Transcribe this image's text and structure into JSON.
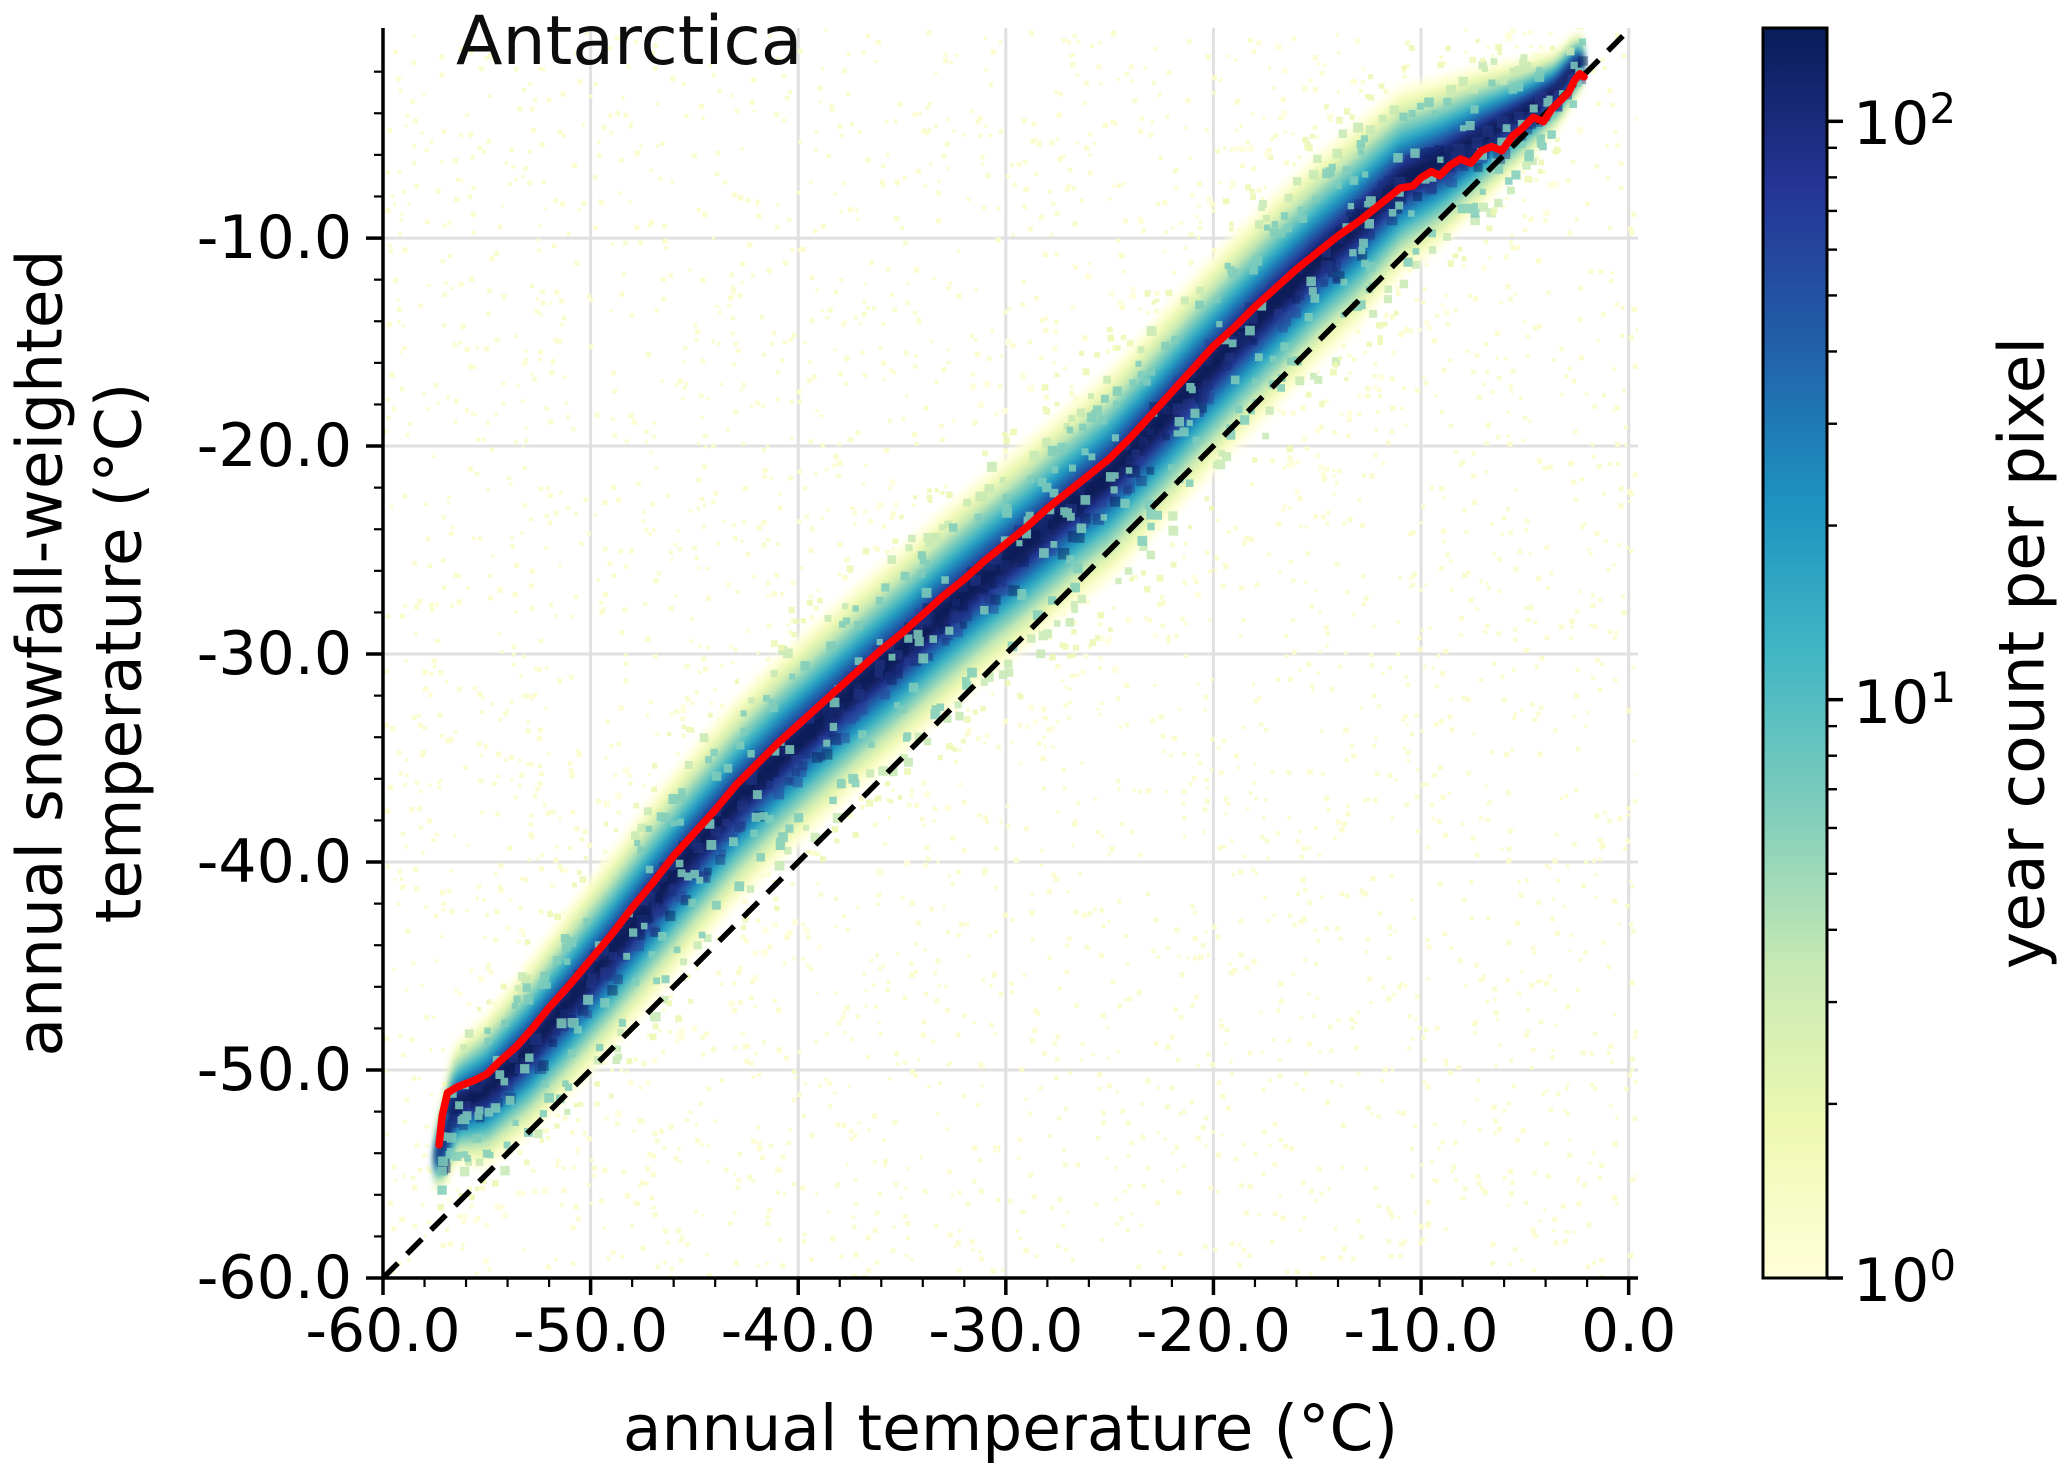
{
  "figure": {
    "background": "#ffffff"
  },
  "chart_data": {
    "type": "heatmap",
    "title": "Antarctica",
    "xlabel": "annual temperature (°C)",
    "ylabel_lines": [
      "annual snowfall-weighted",
      "temperature (°C)"
    ],
    "xlim": [
      -60,
      0.45
    ],
    "ylim": [
      -60,
      0.1
    ],
    "x_tick_values": [
      -60,
      -50,
      -40,
      -30,
      -20,
      -10,
      0
    ],
    "x_tick_labels": [
      "-60.0",
      "-50.0",
      "-40.0",
      "-30.0",
      "-20.0",
      "-10.0",
      "0.0"
    ],
    "y_tick_values": [
      -60,
      -50,
      -40,
      -30,
      -20,
      -10
    ],
    "y_tick_labels": [
      "-60.0",
      "-50.0",
      "-40.0",
      "-30.0",
      "-20.0",
      "-10.0"
    ],
    "minor_tick_step": 2,
    "grid": true,
    "grid_color": "#e0e0e0",
    "axis_color": "#000000",
    "identity_line": {
      "style": "dashed",
      "color": "#000000",
      "from": [
        -60,
        -60
      ],
      "to": [
        0,
        0
      ],
      "dash": [
        21,
        13
      ],
      "width": 5.5
    },
    "median_line": {
      "color": "#ff0000",
      "width": 7.5,
      "points": [
        [
          -57.3,
          -53.6
        ],
        [
          -57.15,
          -52.2
        ],
        [
          -56.9,
          -51.1
        ],
        [
          -56.4,
          -50.8
        ],
        [
          -55.6,
          -50.5
        ],
        [
          -55.0,
          -50.2
        ],
        [
          -54.4,
          -49.6
        ],
        [
          -53.6,
          -48.9
        ],
        [
          -52.8,
          -48.0
        ],
        [
          -52.0,
          -47.0
        ],
        [
          -51.0,
          -45.9
        ],
        [
          -50.0,
          -44.7
        ],
        [
          -49.0,
          -43.5
        ],
        [
          -48.0,
          -42.2
        ],
        [
          -47.0,
          -41.0
        ],
        [
          -46.0,
          -39.7
        ],
        [
          -45.0,
          -38.6
        ],
        [
          -44.0,
          -37.5
        ],
        [
          -43.0,
          -36.3
        ],
        [
          -42.0,
          -35.3
        ],
        [
          -41.0,
          -34.3
        ],
        [
          -40.0,
          -33.4
        ],
        [
          -39.0,
          -32.5
        ],
        [
          -38.0,
          -31.6
        ],
        [
          -37.0,
          -30.7
        ],
        [
          -36.0,
          -29.8
        ],
        [
          -35.0,
          -29.0
        ],
        [
          -34.0,
          -28.1
        ],
        [
          -33.0,
          -27.2
        ],
        [
          -32.0,
          -26.4
        ],
        [
          -31.0,
          -25.5
        ],
        [
          -30.0,
          -24.7
        ],
        [
          -29.0,
          -23.9
        ],
        [
          -28.0,
          -23.0
        ],
        [
          -27.0,
          -22.2
        ],
        [
          -26.0,
          -21.4
        ],
        [
          -25.0,
          -20.6
        ],
        [
          -24.0,
          -19.6
        ],
        [
          -23.0,
          -18.5
        ],
        [
          -22.0,
          -17.4
        ],
        [
          -21.0,
          -16.3
        ],
        [
          -20.0,
          -15.2
        ],
        [
          -19.0,
          -14.3
        ],
        [
          -18.0,
          -13.3
        ],
        [
          -17.0,
          -12.4
        ],
        [
          -16.0,
          -11.5
        ],
        [
          -15.0,
          -10.7
        ],
        [
          -14.0,
          -9.9
        ],
        [
          -13.0,
          -9.2
        ],
        [
          -12.0,
          -8.4
        ],
        [
          -11.0,
          -7.6
        ],
        [
          -10.4,
          -7.5
        ],
        [
          -10.0,
          -7.1
        ],
        [
          -9.5,
          -6.8
        ],
        [
          -9.1,
          -7.0
        ],
        [
          -8.6,
          -6.5
        ],
        [
          -8.1,
          -6.2
        ],
        [
          -7.6,
          -6.4
        ],
        [
          -7.1,
          -5.8
        ],
        [
          -6.6,
          -5.6
        ],
        [
          -6.1,
          -5.8
        ],
        [
          -5.6,
          -5.1
        ],
        [
          -5.1,
          -4.7
        ],
        [
          -4.6,
          -4.2
        ],
        [
          -4.1,
          -4.4
        ],
        [
          -3.7,
          -3.8
        ],
        [
          -3.3,
          -3.4
        ],
        [
          -2.9,
          -3.0
        ],
        [
          -2.6,
          -2.4
        ],
        [
          -2.35,
          -2.1
        ],
        [
          -2.15,
          -2.25
        ]
      ]
    },
    "density_band": {
      "colormap_name": "YlGnBu",
      "colors": [
        "#ffffd9",
        "#edf8b1",
        "#c7e9b4",
        "#7fcdbb",
        "#41b6c4",
        "#1d91c0",
        "#225ea8",
        "#253494",
        "#081d58"
      ],
      "layer_width_factors": [
        1.0,
        0.88,
        0.76,
        0.64,
        0.52,
        0.42,
        0.32,
        0.22,
        0.13
      ],
      "x": [
        -57.4,
        -56.5,
        -55,
        -53,
        -51,
        -49,
        -47,
        -45,
        -43,
        -41,
        -39,
        -37,
        -35,
        -33,
        -31,
        -29,
        -27,
        -25,
        -23,
        -21,
        -19,
        -17,
        -15,
        -13,
        -11,
        -9,
        -7,
        -5,
        -3.5,
        -2.3
      ],
      "outer_width_degC": [
        3.5,
        6,
        7.5,
        8.5,
        9.2,
        9.6,
        10,
        10,
        10,
        10,
        10,
        10,
        10,
        10,
        10,
        10,
        10,
        10.2,
        10.4,
        10.5,
        10.5,
        10.5,
        10.2,
        10,
        9.2,
        8.2,
        6.8,
        5.2,
        4,
        3
      ],
      "center_offset_degC": [
        -0.8,
        -0.8,
        -0.8,
        -0.8,
        -0.8,
        -0.8,
        -0.8,
        -0.8,
        -0.8,
        -0.8,
        -0.8,
        -0.8,
        -0.8,
        -0.8,
        -0.8,
        -0.8,
        -0.8,
        -0.8,
        -0.8,
        -0.8,
        -0.7,
        -0.6,
        -0.35,
        -0.1,
        0.3,
        0.6,
        0.7,
        0.7,
        0.7,
        0.7
      ]
    },
    "speckle": {
      "seed": 20240207,
      "background_count": 3400,
      "fringe_count": 1500,
      "core_mottle_count": 420,
      "background_color": "#fbfccb",
      "fringe_colors": [
        "#7fcdbb",
        "#c7e9b4",
        "#edf8b1",
        "#ffffd9"
      ],
      "mottle_colors": [
        "#081d58",
        "#1a2f7c",
        "#2b3f96"
      ]
    },
    "colorbar": {
      "label": "year count per pixel",
      "scale": "log",
      "vmin": 1,
      "vmax": 145,
      "major_ticks": [
        {
          "value": 1,
          "mantissa": "10",
          "exponent": "0"
        },
        {
          "value": 10,
          "mantissa": "10",
          "exponent": "1"
        },
        {
          "value": 100,
          "mantissa": "10",
          "exponent": "2"
        }
      ],
      "minor_tick_values": [
        2,
        3,
        4,
        5,
        6,
        7,
        8,
        9,
        20,
        30,
        40,
        50,
        60,
        70,
        80,
        90
      ],
      "gradient_stops": [
        "#ffffd9",
        "#edf8b1",
        "#c7e9b4",
        "#7fcdbb",
        "#41b6c4",
        "#1d91c0",
        "#225ea8",
        "#253494",
        "#081d58"
      ]
    }
  }
}
